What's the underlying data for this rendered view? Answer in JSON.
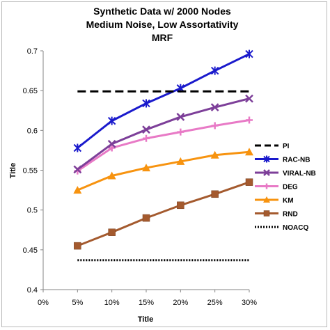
{
  "chart_data": {
    "type": "line",
    "title_lines": [
      "Synthetic Data w/ 2000 Nodes",
      "Medium Noise, Low Assortativity",
      "MRF"
    ],
    "xlabel": "Title",
    "ylabel": "Title",
    "x_categories": [
      "0%",
      "5%",
      "10%",
      "15%",
      "20%",
      "25%",
      "30%"
    ],
    "y_ticks": [
      "0.4",
      "0.45",
      "0.5",
      "0.55",
      "0.6",
      "0.65",
      "0.7"
    ],
    "ylim": [
      0.4,
      0.7
    ],
    "legend_position": "right",
    "grid": false,
    "series": [
      {
        "name": "PI",
        "style": "dashed",
        "color": "#000000",
        "marker": "none",
        "x": [
          "5%",
          "30%"
        ],
        "values": [
          0.649,
          0.649
        ]
      },
      {
        "name": "RAC-NB",
        "style": "solid",
        "color": "#1a1acc",
        "marker": "star",
        "x": [
          "5%",
          "10%",
          "15%",
          "20%",
          "25%",
          "30%"
        ],
        "values": [
          0.578,
          0.612,
          0.634,
          0.653,
          0.675,
          0.696
        ]
      },
      {
        "name": "VIRAL-NB",
        "style": "solid",
        "color": "#7d3f99",
        "marker": "x",
        "x": [
          "5%",
          "10%",
          "15%",
          "20%",
          "25%",
          "30%"
        ],
        "values": [
          0.551,
          0.583,
          0.601,
          0.617,
          0.629,
          0.64
        ]
      },
      {
        "name": "DEG",
        "style": "solid",
        "color": "#e87ac6",
        "marker": "plus",
        "x": [
          "5%",
          "10%",
          "15%",
          "20%",
          "25%",
          "30%"
        ],
        "values": [
          0.549,
          0.578,
          0.59,
          0.598,
          0.606,
          0.613
        ]
      },
      {
        "name": "KM",
        "style": "solid",
        "color": "#f7930f",
        "marker": "triangle",
        "x": [
          "5%",
          "10%",
          "15%",
          "20%",
          "25%",
          "30%"
        ],
        "values": [
          0.525,
          0.543,
          0.553,
          0.561,
          0.569,
          0.573
        ]
      },
      {
        "name": "RND",
        "style": "solid",
        "color": "#a45a2e",
        "marker": "square",
        "x": [
          "5%",
          "10%",
          "15%",
          "20%",
          "25%",
          "30%"
        ],
        "values": [
          0.455,
          0.472,
          0.49,
          0.506,
          0.52,
          0.535
        ]
      },
      {
        "name": "NOACQ",
        "style": "dotted",
        "color": "#000000",
        "marker": "none",
        "x": [
          "5%",
          "30%"
        ],
        "values": [
          0.437,
          0.437
        ]
      }
    ]
  }
}
